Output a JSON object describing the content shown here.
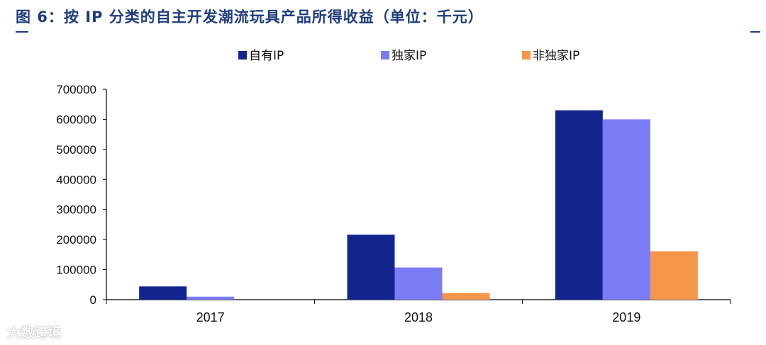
{
  "header": {
    "title": "图 6：按 IP 分类的自主开发潮流玩具产品所得收益（单位：千元）"
  },
  "watermark": {
    "text": "大数跨境"
  },
  "chart_data": {
    "type": "bar",
    "title": "",
    "xlabel": "",
    "ylabel": "",
    "categories": [
      "2017",
      "2018",
      "2019"
    ],
    "series": [
      {
        "name": "自有IP",
        "color": "#14248f",
        "values": [
          44000,
          216000,
          630000
        ]
      },
      {
        "name": "独家IP",
        "color": "#7b7bf5",
        "values": [
          10000,
          107000,
          600000
        ]
      },
      {
        "name": "非独家IP",
        "color": "#f5964b",
        "values": [
          0,
          22000,
          161000
        ]
      }
    ],
    "ylim": [
      0,
      700000
    ],
    "yticks": [
      0,
      100000,
      200000,
      300000,
      400000,
      500000,
      600000,
      700000
    ],
    "ytick_labels": [
      "0",
      "100000",
      "200000",
      "300000",
      "400000",
      "500000",
      "600000",
      "700000"
    ],
    "grid": false,
    "legend_position": "top-center"
  }
}
